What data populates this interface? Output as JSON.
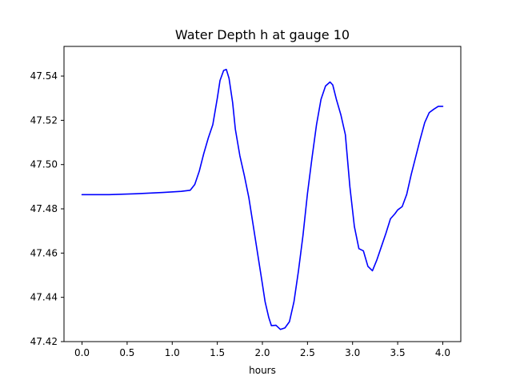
{
  "chart_data": {
    "type": "line",
    "title": "Water Depth h at gauge 10",
    "xlabel": "hours",
    "ylabel": "",
    "xlim": [
      -0.2,
      4.2
    ],
    "ylim": [
      47.42,
      47.5534
    ],
    "xticks": [
      0.0,
      0.5,
      1.0,
      1.5,
      2.0,
      2.5,
      3.0,
      3.5,
      4.0
    ],
    "xtick_labels": [
      "0.0",
      "0.5",
      "1.0",
      "1.5",
      "2.0",
      "2.5",
      "3.0",
      "3.5",
      "4.0"
    ],
    "yticks": [
      47.42,
      47.44,
      47.46,
      47.48,
      47.5,
      47.52,
      47.54
    ],
    "ytick_labels": [
      "47.42",
      "47.44",
      "47.46",
      "47.48",
      "47.50",
      "47.52",
      "47.54"
    ],
    "grid": false,
    "series": [
      {
        "color": "#0000ff",
        "x": [
          0.0,
          0.3,
          0.6,
          0.9,
          1.1,
          1.2,
          1.25,
          1.3,
          1.35,
          1.4,
          1.45,
          1.5,
          1.53,
          1.57,
          1.6,
          1.63,
          1.67,
          1.7,
          1.75,
          1.8,
          1.85,
          1.9,
          1.95,
          2.0,
          2.03,
          2.07,
          2.1,
          2.15,
          2.2,
          2.25,
          2.3,
          2.35,
          2.4,
          2.45,
          2.5,
          2.55,
          2.6,
          2.65,
          2.7,
          2.75,
          2.78,
          2.82,
          2.87,
          2.92,
          2.97,
          3.02,
          3.07,
          3.12,
          3.17,
          3.22,
          3.27,
          3.32,
          3.37,
          3.42,
          3.47,
          3.5,
          3.55,
          3.6,
          3.65,
          3.7,
          3.75,
          3.8,
          3.85,
          3.9,
          3.95,
          4.0
        ],
        "y": [
          47.4864,
          47.4864,
          47.4868,
          47.4874,
          47.4879,
          47.4884,
          47.491,
          47.497,
          47.505,
          47.512,
          47.518,
          47.53,
          47.538,
          47.5425,
          47.543,
          47.539,
          47.528,
          47.516,
          47.504,
          47.495,
          47.485,
          47.472,
          47.459,
          47.446,
          47.438,
          47.431,
          47.4272,
          47.4274,
          47.4255,
          47.4262,
          47.429,
          47.438,
          47.452,
          47.468,
          47.487,
          47.503,
          47.518,
          47.5295,
          47.5355,
          47.5373,
          47.536,
          47.5295,
          47.5225,
          47.5135,
          47.49,
          47.472,
          47.462,
          47.461,
          47.454,
          47.452,
          47.457,
          47.463,
          47.469,
          47.4755,
          47.4778,
          47.4795,
          47.481,
          47.4865,
          47.4955,
          47.5035,
          47.5115,
          47.519,
          47.5235,
          47.525,
          47.5263,
          47.5263
        ]
      }
    ]
  }
}
